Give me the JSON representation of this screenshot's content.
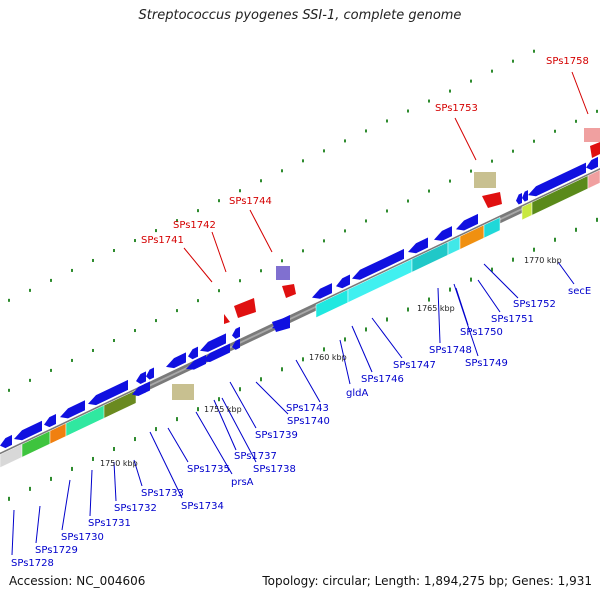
{
  "title": "Streptococcus pyogenes SSI-1, complete genome",
  "footer": {
    "accession": "Accession: NC_004606",
    "topology": "Topology: circular; Length: 1,894,275 bp; Genes: 1,931"
  },
  "colors": {
    "backbone": "#7a7a7a",
    "gene_forward_blue": "#1010e0",
    "gene_label_blue": "#0000cc",
    "gene_label_red": "#d40000",
    "dot_green": "#2e8b2e"
  },
  "scale_labels": [
    "1750 kbp",
    "1755 kbp",
    "1760 kbp",
    "1765 kbp",
    "1770 kbp"
  ],
  "blue_labels": [
    "SPs1728",
    "SPs1729",
    "SPs1730",
    "SPs1731",
    "SPs1732",
    "SPs1733",
    "SPs1734",
    "SPs1735",
    "prsA",
    "SPs1737",
    "SPs1738",
    "SPs1739",
    "SPs1740",
    "SPs1743",
    "gldA",
    "SPs1746",
    "SPs1747",
    "SPs1748",
    "SPs1749",
    "SPs1750",
    "SPs1751",
    "SPs1752",
    "secE"
  ],
  "red_labels": [
    "SPs1741",
    "SPs1742",
    "SPs1744",
    "SPs1753",
    "SPs1758"
  ]
}
